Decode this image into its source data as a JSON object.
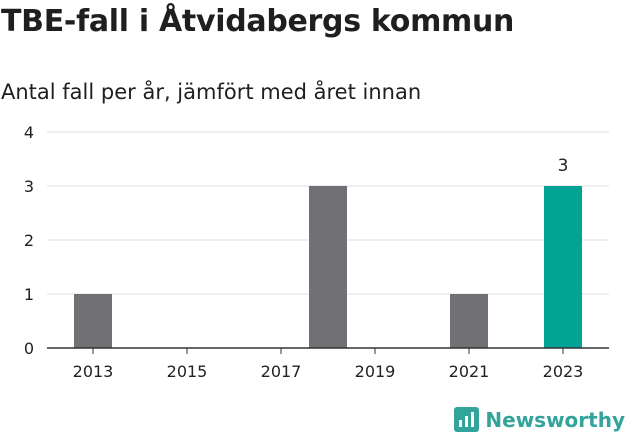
{
  "title": "TBE-fall i Åtvidabergs kommun",
  "subtitle": "Antal fall per år, jämfört med året innan",
  "brand": "Newsworthy",
  "colors": {
    "bar": "#717074",
    "highlight": "#00a394",
    "grid": "#dddddd",
    "axis": "#333333",
    "brand": "#33a49b"
  },
  "chart_data": {
    "type": "bar",
    "title": "TBE-fall i Åtvidabergs kommun",
    "subtitle": "Antal fall per år, jämfört med året innan",
    "categories": [
      "2013",
      "2014",
      "2015",
      "2016",
      "2017",
      "2018",
      "2019",
      "2020",
      "2021",
      "2022",
      "2023"
    ],
    "values": [
      1,
      0,
      0,
      0,
      0,
      3,
      0,
      0,
      1,
      0,
      3
    ],
    "highlight_category": "2023",
    "data_labels": [
      {
        "category": "2023",
        "text": "3"
      }
    ],
    "x_tick_labels": [
      "2013",
      "2015",
      "2017",
      "2019",
      "2021",
      "2023"
    ],
    "y_ticks": [
      0,
      1,
      2,
      3,
      4
    ],
    "ylim": [
      0,
      4
    ],
    "xlabel": "",
    "ylabel": "",
    "grid": true
  }
}
